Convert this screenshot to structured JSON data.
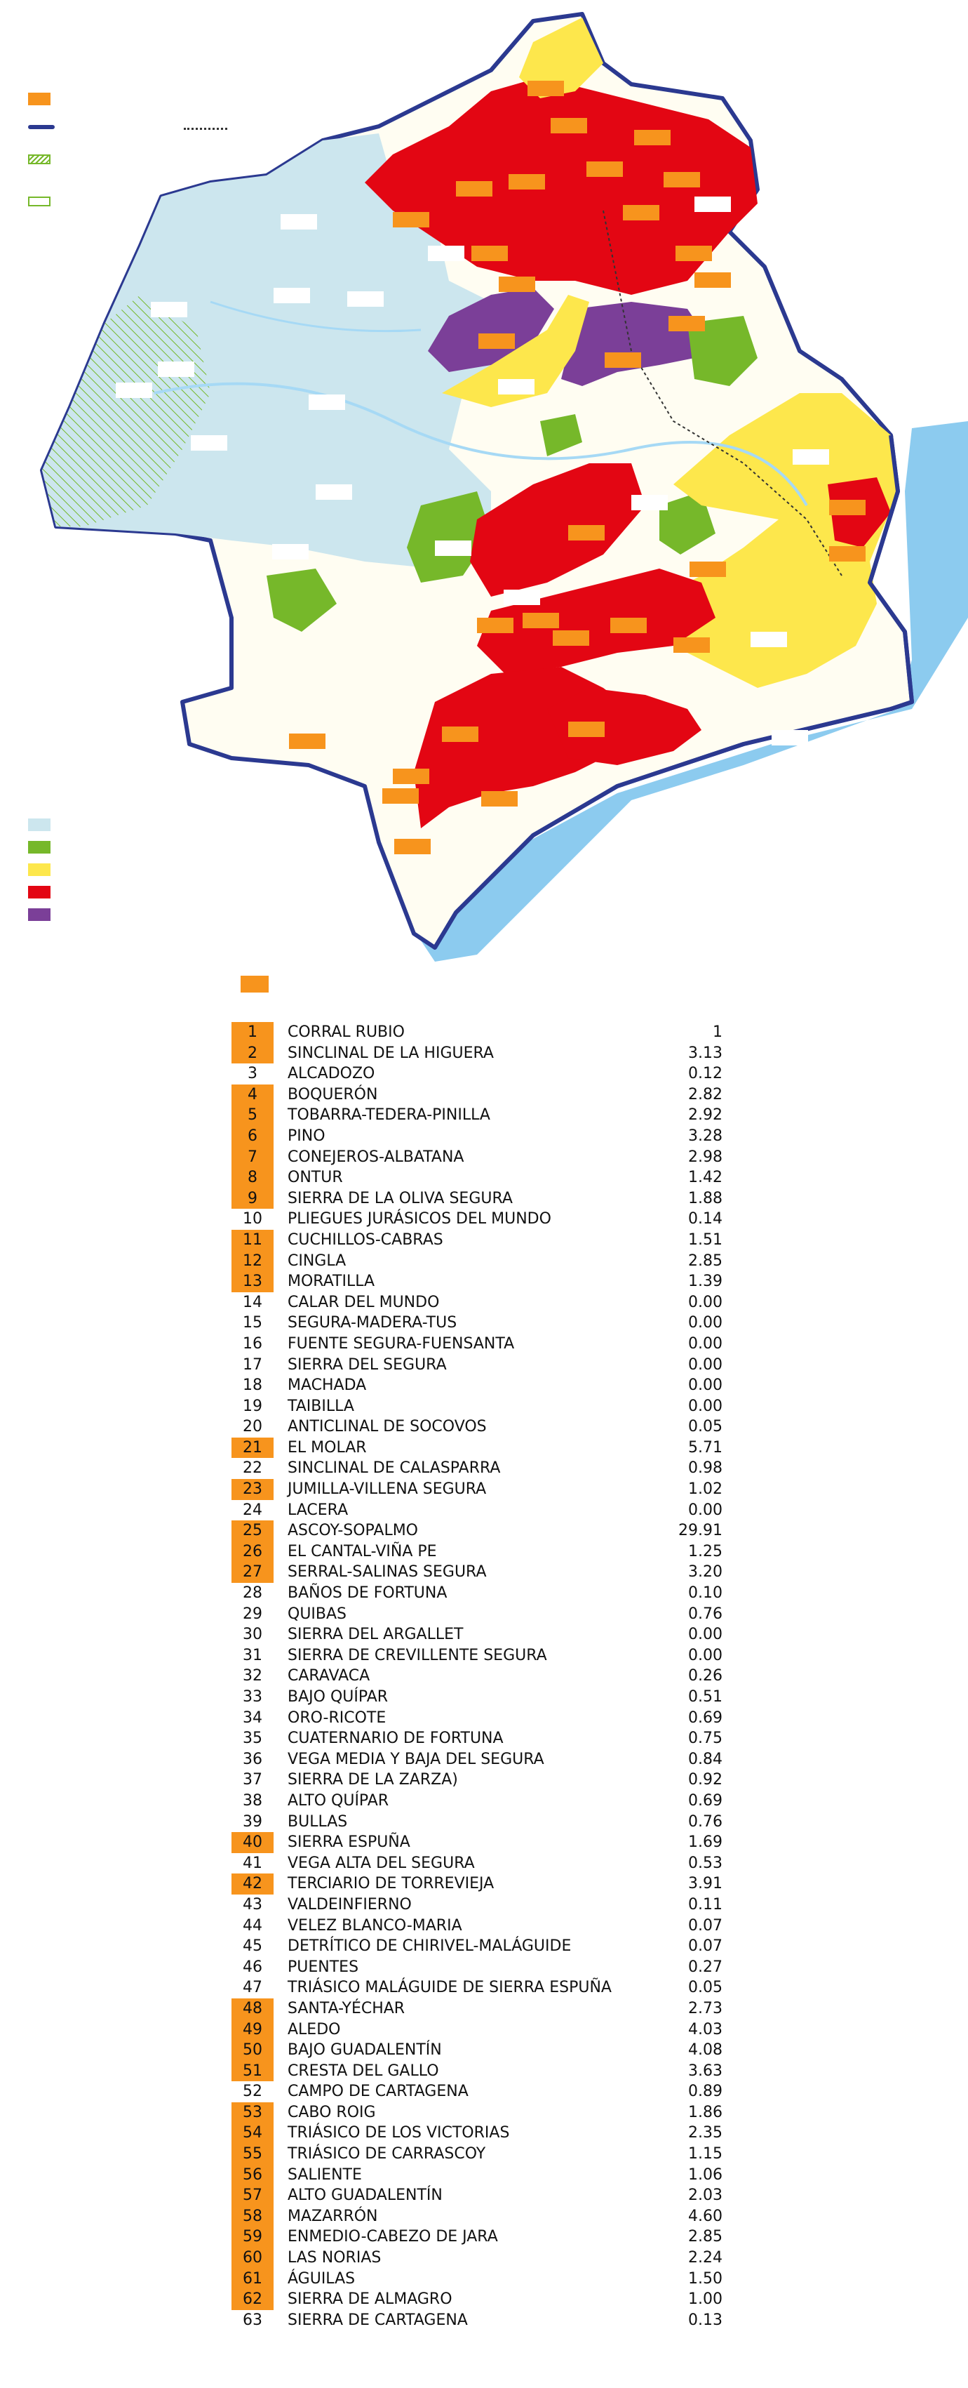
{
  "colors": {
    "highlight": "#f7941d",
    "light_blue": "#cce6ee",
    "green": "#76b82a",
    "yellow": "#fde74c",
    "red": "#e30613",
    "purple": "#7b3f98",
    "sea": "#8ccbef",
    "border": "#2b3990",
    "river": "#a6d9f5"
  },
  "legend": [
    {
      "name": "orange",
      "color": "#f7941d"
    },
    {
      "name": "navy-line",
      "color": "#2b3990"
    },
    {
      "name": "hatched-green",
      "color": "#76b82a"
    },
    {
      "name": "green-outline",
      "color": "#76b82a"
    }
  ],
  "classes": [
    {
      "name": "light-blue",
      "color": "#cce6ee"
    },
    {
      "name": "green",
      "color": "#76b82a"
    },
    {
      "name": "yellow",
      "color": "#fde74c"
    },
    {
      "name": "red",
      "color": "#e30613"
    },
    {
      "name": "purple",
      "color": "#7b3f98"
    }
  ],
  "table": [
    {
      "num": "1",
      "name": "CORRAL RUBIO",
      "value": "1",
      "hl": true
    },
    {
      "num": "2",
      "name": "SINCLINAL DE LA HIGUERA",
      "value": "3.13",
      "hl": true
    },
    {
      "num": "3",
      "name": "ALCADOZO",
      "value": "0.12",
      "hl": false
    },
    {
      "num": "4",
      "name": "BOQUERÓN",
      "value": "2.82",
      "hl": true
    },
    {
      "num": "5",
      "name": "TOBARRA-TEDERA-PINILLA",
      "value": "2.92",
      "hl": true
    },
    {
      "num": "6",
      "name": "PINO",
      "value": "3.28",
      "hl": true
    },
    {
      "num": "7",
      "name": "CONEJEROS-ALBATANA",
      "value": "2.98",
      "hl": true
    },
    {
      "num": "8",
      "name": "ONTUR",
      "value": "1.42",
      "hl": true
    },
    {
      "num": "9",
      "name": "SIERRA DE LA OLIVA SEGURA",
      "value": "1.88",
      "hl": true
    },
    {
      "num": "10",
      "name": "PLIEGUES JURÁSICOS DEL MUNDO",
      "value": "0.14",
      "hl": false
    },
    {
      "num": "11",
      "name": "CUCHILLOS-CABRAS",
      "value": "1.51",
      "hl": true
    },
    {
      "num": "12",
      "name": "CINGLA",
      "value": "2.85",
      "hl": true
    },
    {
      "num": "13",
      "name": "MORATILLA",
      "value": "1.39",
      "hl": true
    },
    {
      "num": "14",
      "name": "CALAR DEL MUNDO",
      "value": "0.00",
      "hl": false
    },
    {
      "num": "15",
      "name": "SEGURA-MADERA-TUS",
      "value": "0.00",
      "hl": false
    },
    {
      "num": "16",
      "name": "FUENTE SEGURA-FUENSANTA",
      "value": "0.00",
      "hl": false
    },
    {
      "num": "17",
      "name": " SIERRA DEL SEGURA",
      "value": "0.00",
      "hl": false
    },
    {
      "num": "18",
      "name": "MACHADA",
      "value": "0.00",
      "hl": false
    },
    {
      "num": "19",
      "name": "TAIBILLA",
      "value": "0.00",
      "hl": false
    },
    {
      "num": "20",
      "name": "ANTICLINAL DE SOCOVOS",
      "value": "0.05",
      "hl": false
    },
    {
      "num": "21",
      "name": "EL MOLAR",
      "value": "5.71",
      "hl": true
    },
    {
      "num": "22",
      "name": "SINCLINAL DE CALASPARRA",
      "value": "0.98",
      "hl": false
    },
    {
      "num": "23",
      "name": "JUMILLA-VILLENA SEGURA",
      "value": "1.02",
      "hl": true
    },
    {
      "num": "24",
      "name": "LACERA",
      "value": "0.00",
      "hl": false
    },
    {
      "num": "25",
      "name": "ASCOY-SOPALMO",
      "value": "29.91",
      "hl": true
    },
    {
      "num": "26",
      "name": "EL CANTAL-VIÑA PE",
      "value": "1.25",
      "hl": true
    },
    {
      "num": "27",
      "name": "SERRAL-SALINAS SEGURA",
      "value": "3.20",
      "hl": true
    },
    {
      "num": "28",
      "name": "BAÑOS DE FORTUNA",
      "value": "0.10",
      "hl": false
    },
    {
      "num": "29",
      "name": "QUIBAS",
      "value": "0.76",
      "hl": false
    },
    {
      "num": "30",
      "name": "SIERRA DEL ARGALLET",
      "value": "0.00",
      "hl": false
    },
    {
      "num": "31",
      "name": "SIERRA DE CREVILLENTE SEGURA",
      "value": "0.00",
      "hl": false
    },
    {
      "num": "32",
      "name": "CARAVACA",
      "value": "0.26",
      "hl": false
    },
    {
      "num": "33",
      "name": "BAJO QUÍPAR",
      "value": "0.51",
      "hl": false
    },
    {
      "num": "34",
      "name": "ORO-RICOTE",
      "value": "0.69",
      "hl": false
    },
    {
      "num": "35",
      "name": "CUATERNARIO DE FORTUNA",
      "value": "0.75",
      "hl": false
    },
    {
      "num": "36",
      "name": "VEGA MEDIA Y BAJA DEL SEGURA",
      "value": "0.84",
      "hl": false
    },
    {
      "num": "37",
      "name": "SIERRA DE LA ZARZA)",
      "value": "0.92",
      "hl": false
    },
    {
      "num": "38",
      "name": "ALTO QUÍPAR",
      "value": "0.69",
      "hl": false
    },
    {
      "num": "39",
      "name": "BULLAS",
      "value": "0.76",
      "hl": false
    },
    {
      "num": "40",
      "name": "SIERRA ESPUÑA",
      "value": "1.69",
      "hl": true
    },
    {
      "num": "41",
      "name": "VEGA ALTA DEL SEGURA",
      "value": "0.53",
      "hl": false
    },
    {
      "num": "42",
      "name": "TERCIARIO DE TORREVIEJA",
      "value": "3.91",
      "hl": true
    },
    {
      "num": "43",
      "name": "VALDEINFIERNO",
      "value": "0.11",
      "hl": false
    },
    {
      "num": "44",
      "name": "VELEZ BLANCO-MARIA",
      "value": "0.07",
      "hl": false
    },
    {
      "num": "45",
      "name": "DETRÍTICO DE CHIRIVEL-MALÁGUIDE",
      "value": "0.07",
      "hl": false
    },
    {
      "num": "46",
      "name": "PUENTES",
      "value": "0.27",
      "hl": false
    },
    {
      "num": "47",
      "name": "TRIÁSICO MALÁGUIDE DE SIERRA ESPUÑA",
      "value": "0.05",
      "hl": false
    },
    {
      "num": "48",
      "name": "SANTA-YÉCHAR",
      "value": "2.73",
      "hl": true
    },
    {
      "num": "49",
      "name": "ALEDO",
      "value": "4.03",
      "hl": true
    },
    {
      "num": "50",
      "name": "BAJO GUADALENTÍN",
      "value": "4.08",
      "hl": true
    },
    {
      "num": "51",
      "name": "CRESTA DEL GALLO",
      "value": "3.63",
      "hl": true
    },
    {
      "num": "52",
      "name": "CAMPO DE CARTAGENA",
      "value": "0.89",
      "hl": false
    },
    {
      "num": "53",
      "name": "CABO ROIG",
      "value": "1.86",
      "hl": true
    },
    {
      "num": "54",
      "name": "TRIÁSICO DE LOS VICTORIAS",
      "value": "2.35",
      "hl": true
    },
    {
      "num": "55",
      "name": "TRIÁSICO DE CARRASCOY",
      "value": "1.15",
      "hl": true
    },
    {
      "num": "56",
      "name": "SALIENTE",
      "value": "1.06",
      "hl": true
    },
    {
      "num": "57",
      "name": "ALTO GUADALENTÍN",
      "value": "2.03",
      "hl": true
    },
    {
      "num": "58",
      "name": "MAZARRÓN",
      "value": "4.60",
      "hl": true
    },
    {
      "num": "59",
      "name": "ENMEDIO-CABEZO DE JARA",
      "value": "2.85",
      "hl": true
    },
    {
      "num": "60",
      "name": "LAS NORIAS",
      "value": "2.24",
      "hl": true
    },
    {
      "num": "61",
      "name": "ÁGUILAS",
      "value": "1.50",
      "hl": true
    },
    {
      "num": "62",
      "name": "SIERRA DE ALMAGRO",
      "value": "1.00",
      "hl": true
    },
    {
      "num": "63",
      "name": "SIERRA DE CARTAGENA",
      "value": "0.13",
      "hl": false
    }
  ]
}
